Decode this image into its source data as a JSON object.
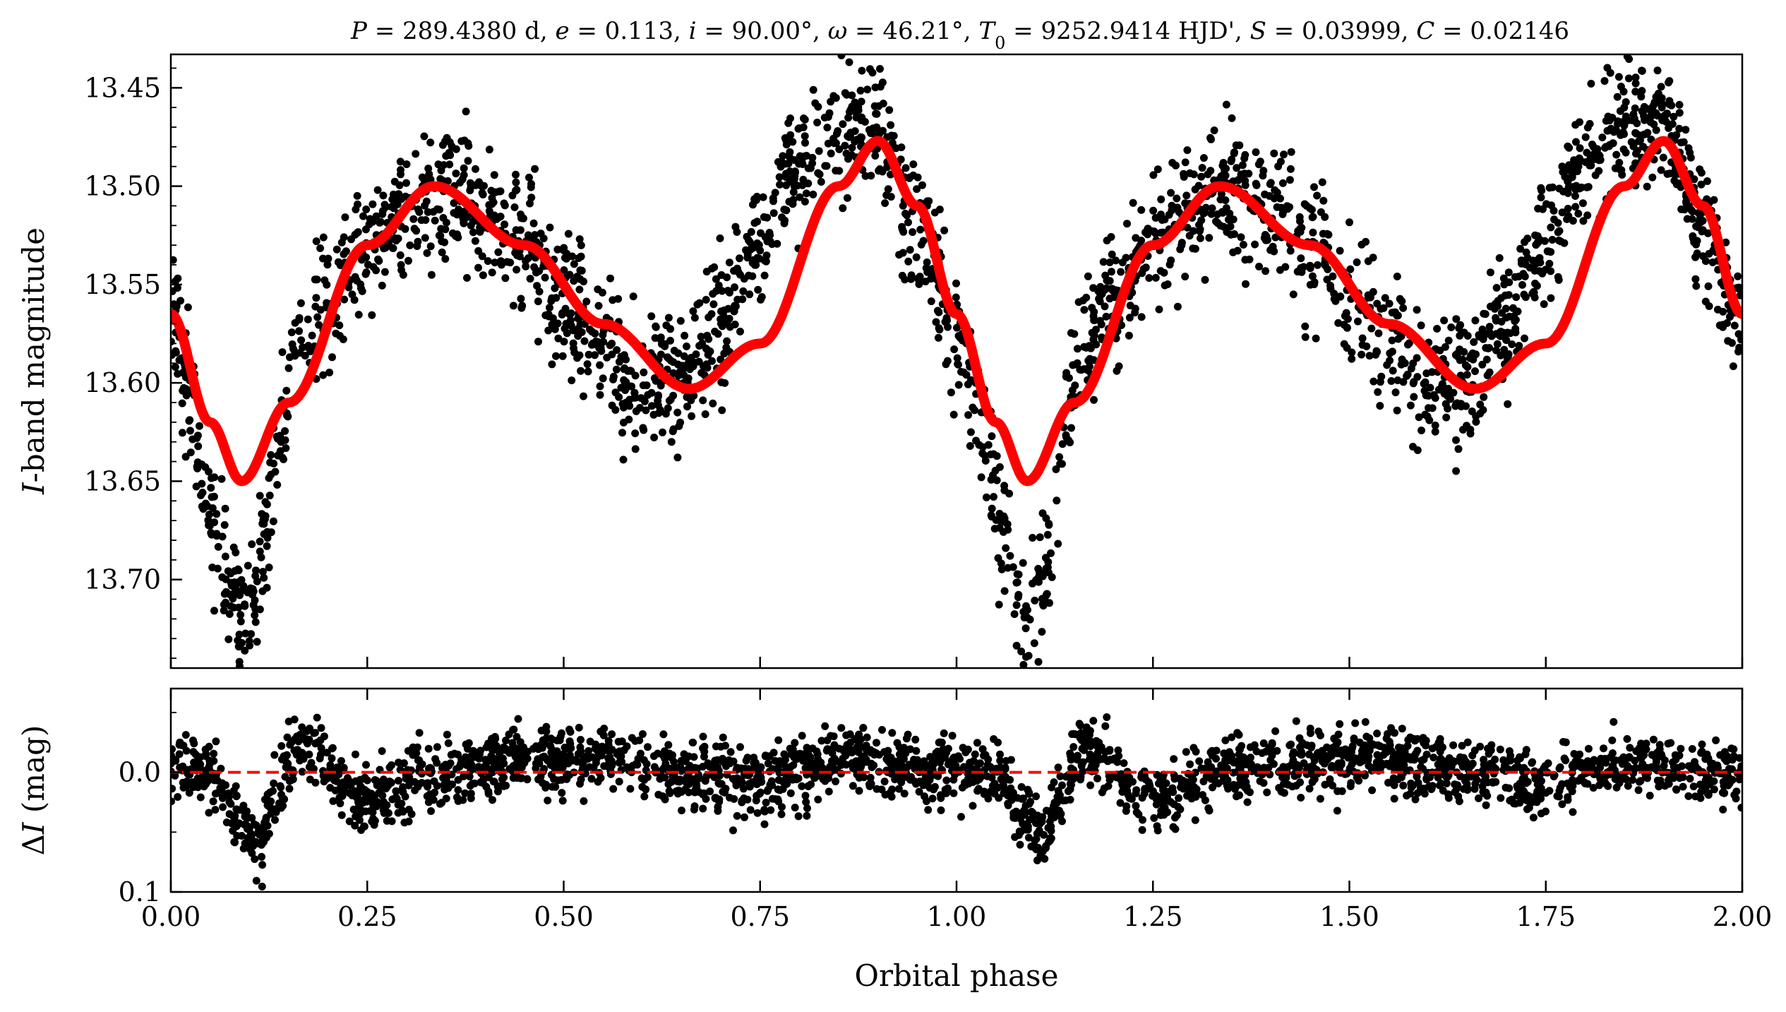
{
  "chart_data": [
    {
      "type": "scatter",
      "panel": "top",
      "title": "P = 289.4380 d, e = 0.113, i = 90.00°, ω = 46.21°, T0 = 9252.9414 HJD', S = 0.03999, C = 0.02146",
      "title_parts": [
        "P",
        " = 289.4380 d, ",
        "e",
        " = 0.113, ",
        "i",
        " = 90.00°, ",
        "ω",
        " = 46.21°, ",
        "T",
        "0",
        " = 9252.9414 HJD', ",
        "S",
        " = 0.03999, ",
        "C",
        " = 0.02146"
      ],
      "xlabel": "",
      "ylabel_parts": [
        "I",
        "-band magnitude"
      ],
      "xlim": [
        0.0,
        2.0
      ],
      "ylim": [
        13.745,
        13.433
      ],
      "y_inverted": true,
      "yticks": [
        "13.45",
        "13.50",
        "13.55",
        "13.60",
        "13.65",
        "13.70"
      ],
      "ytick_values": [
        13.45,
        13.5,
        13.55,
        13.6,
        13.65,
        13.7
      ],
      "grid": false,
      "series": [
        {
          "kind": "observed points",
          "color": "#000000",
          "phase": [
            0.0,
            0.02,
            0.04,
            0.06,
            0.08,
            0.09,
            0.1,
            0.11,
            0.12,
            0.14,
            0.16,
            0.2,
            0.25,
            0.3,
            0.35,
            0.4,
            0.45,
            0.5,
            0.55,
            0.6,
            0.65,
            0.7,
            0.75,
            0.8,
            0.85,
            0.9,
            0.95,
            1.0
          ],
          "magnitude": [
            13.57,
            13.6,
            13.64,
            13.68,
            13.71,
            13.72,
            13.71,
            13.7,
            13.68,
            13.62,
            13.58,
            13.56,
            13.53,
            13.51,
            13.5,
            13.51,
            13.53,
            13.56,
            13.58,
            13.6,
            13.6,
            13.57,
            13.53,
            13.49,
            13.47,
            13.47,
            13.52,
            13.57
          ],
          "scatter_mag": 0.03
        },
        {
          "kind": "model",
          "color": "#ff0000",
          "phase": [
            0.0,
            0.05,
            0.09,
            0.15,
            0.25,
            0.335,
            0.45,
            0.55,
            0.66,
            0.75,
            0.85,
            0.9,
            0.95,
            1.0
          ],
          "magnitude": [
            13.565,
            13.62,
            13.65,
            13.61,
            13.53,
            13.5,
            13.53,
            13.57,
            13.603,
            13.58,
            13.5,
            13.477,
            13.51,
            13.565
          ]
        }
      ]
    },
    {
      "type": "scatter",
      "panel": "bottom",
      "xlabel": "Orbital phase",
      "ylabel_parts": [
        "Δ",
        "I",
        " (mag)"
      ],
      "xlim": [
        0.0,
        2.0
      ],
      "ylim": [
        0.1,
        -0.07
      ],
      "y_inverted": true,
      "xticks": [
        "0.00",
        "0.25",
        "0.50",
        "0.75",
        "1.00",
        "1.25",
        "1.50",
        "1.75",
        "2.00"
      ],
      "xtick_values": [
        0.0,
        0.25,
        0.5,
        0.75,
        1.0,
        1.25,
        1.5,
        1.75,
        2.0
      ],
      "yticks": [
        "0.0",
        "0.1"
      ],
      "ytick_values": [
        0.0,
        0.1
      ],
      "grid": false,
      "series": [
        {
          "kind": "residual points",
          "color": "#000000",
          "phase": [
            0.0,
            0.05,
            0.09,
            0.11,
            0.13,
            0.16,
            0.25,
            0.35,
            0.45,
            0.55,
            0.65,
            0.75,
            0.85,
            0.95,
            1.0
          ],
          "residual": [
            0.0,
            0.0,
            0.04,
            0.065,
            0.02,
            -0.02,
            0.02,
            0.0,
            -0.01,
            -0.01,
            0.0,
            0.01,
            -0.01,
            0.0,
            0.0
          ],
          "scatter_mag": 0.025
        },
        {
          "kind": "zero line",
          "color": "#ff0000",
          "style": "dashed",
          "value": 0.0
        }
      ]
    }
  ]
}
